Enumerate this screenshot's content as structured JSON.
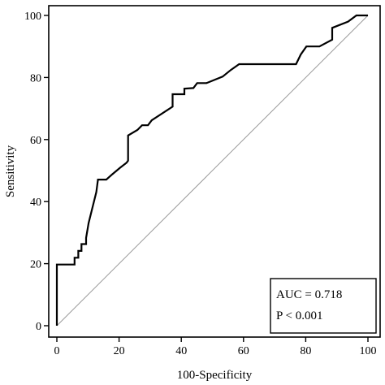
{
  "chart_data": {
    "type": "line",
    "title": "",
    "xlabel": "100-Specificity",
    "ylabel": "Sensitivity",
    "xlim": [
      0,
      100
    ],
    "ylim": [
      0,
      100
    ],
    "xticks": [
      0,
      20,
      40,
      60,
      80,
      100
    ],
    "yticks": [
      0,
      20,
      40,
      60,
      80,
      100
    ],
    "x_tick_labels": [
      "0",
      "20",
      "40",
      "60",
      "80",
      "100"
    ],
    "y_tick_labels": [
      "0",
      "20",
      "40",
      "60",
      "80",
      "100"
    ],
    "grid": false,
    "series": [
      {
        "style": "step",
        "color": "#000000",
        "x": [
          0,
          0,
          5.7,
          5.7,
          6.9,
          6.9,
          7.9,
          7.9,
          9.4,
          9.4,
          10.2,
          12.7,
          13.2,
          15.9,
          17.8,
          20.3,
          22.4,
          22.9,
          22.9,
          25.9,
          27.4,
          29.3,
          30.5,
          37.2,
          37.2,
          41,
          41,
          43.9,
          45.1,
          48.1,
          53.3,
          55.9,
          58.6,
          76.9,
          78.4,
          80.2,
          84.4,
          88.5,
          88.5,
          93.6,
          96.3,
          100
        ],
        "y": [
          0,
          19.7,
          19.7,
          21.9,
          21.9,
          24.1,
          24.1,
          26.3,
          26.3,
          28.3,
          33.1,
          43.1,
          47.1,
          47.1,
          48.8,
          50.9,
          52.5,
          53.2,
          61.3,
          63.1,
          64.6,
          64.6,
          66.2,
          70.6,
          74.6,
          74.6,
          76.4,
          76.6,
          78.2,
          78.2,
          80.3,
          82.4,
          84.3,
          84.3,
          87.4,
          90,
          90,
          92.2,
          96,
          98,
          100,
          100
        ]
      },
      {
        "style": "reference",
        "color": "#999999",
        "x": [
          0,
          100
        ],
        "y": [
          0,
          100
        ]
      }
    ],
    "annotation": {
      "auc": "AUC = 0.718",
      "p_value": "P < 0.001",
      "placement": "bottom-right"
    }
  }
}
